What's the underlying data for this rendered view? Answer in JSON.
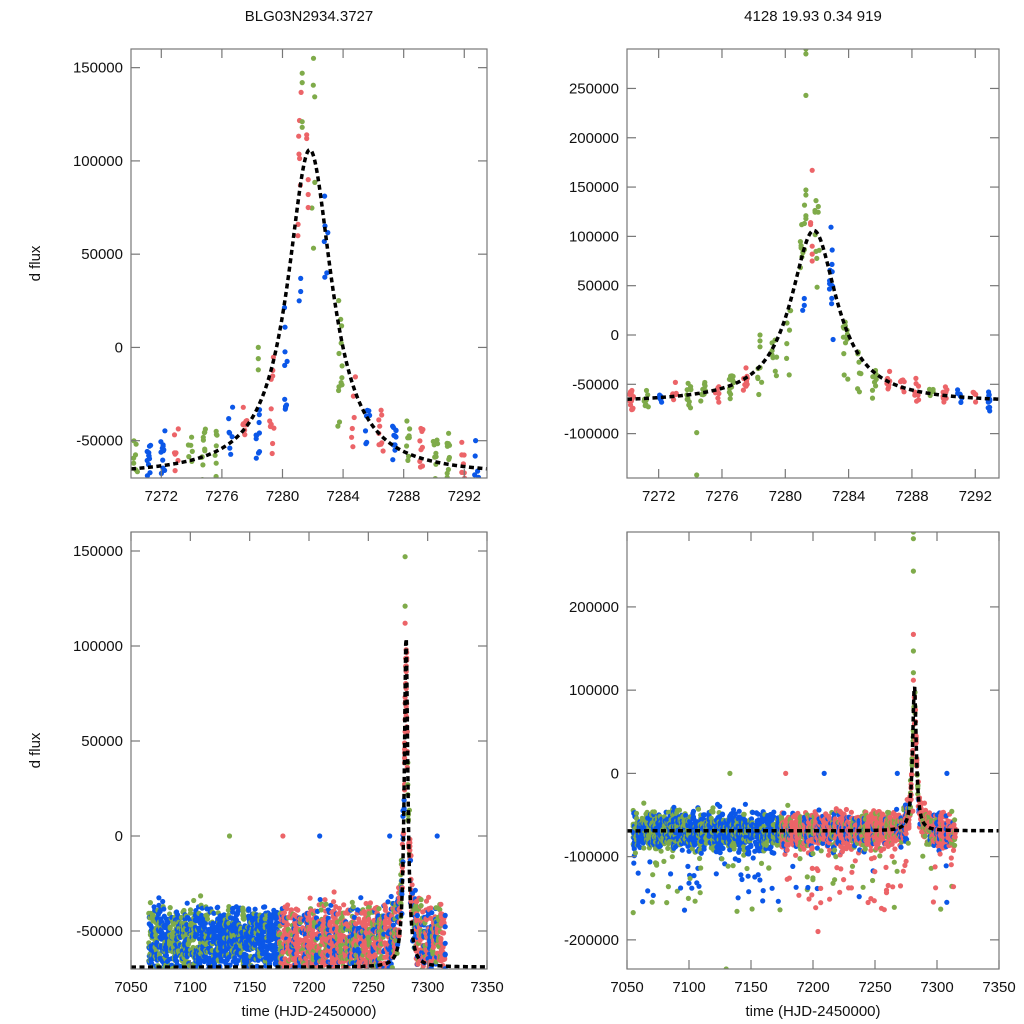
{
  "titles": {
    "left": "BLG03N2934.3727",
    "right": "4128  19.93  0.34  919"
  },
  "colors": {
    "series_green": "#7fab4a",
    "series_red": "#ec6468",
    "series_blue": "#0b57e8",
    "model": "#000000",
    "frame": "#777777"
  },
  "chart_data": [
    {
      "id": "top-left",
      "type": "scatter",
      "title": "BLG03N2934.3727",
      "xlabel": "",
      "ylabel": "d flux",
      "xlim": [
        7270,
        7293.5
      ],
      "ylim": [
        -70000,
        160000
      ],
      "xticks": [
        7272,
        7276,
        7280,
        7284,
        7288,
        7292
      ],
      "xtick_labels": [
        "7272",
        "7276",
        "7280",
        "7284",
        "7288",
        "7292"
      ],
      "yticks": [
        -50000,
        0,
        50000,
        100000,
        150000
      ],
      "ytick_labels": [
        "-50000",
        "0",
        "50000",
        "100000",
        "150000"
      ],
      "model": {
        "type": "lorentzian-like peak",
        "t0": 7281.8,
        "peak": 106000,
        "baseline": -69000,
        "width_days": 1.9
      },
      "series": [
        {
          "name": "green",
          "color": "#7fab4a"
        },
        {
          "name": "red",
          "color": "#ec6468"
        },
        {
          "name": "blue",
          "color": "#0b57e8"
        }
      ],
      "grid": false
    },
    {
      "id": "top-right",
      "type": "scatter",
      "title": "4128  19.93  0.34  919",
      "xlabel": "",
      "ylabel": "",
      "xlim": [
        7270,
        7293.5
      ],
      "ylim": [
        -145000,
        290000
      ],
      "xticks": [
        7272,
        7276,
        7280,
        7284,
        7288,
        7292
      ],
      "xtick_labels": [
        "7272",
        "7276",
        "7280",
        "7284",
        "7288",
        "7292"
      ],
      "yticks": [
        -100000,
        -50000,
        0,
        50000,
        100000,
        150000,
        200000,
        250000
      ],
      "ytick_labels": [
        "-100000",
        "-50000",
        "0",
        "50000",
        "100000",
        "150000",
        "200000",
        "250000"
      ],
      "model": {
        "type": "lorentzian-like peak",
        "t0": 7281.8,
        "peak": 106000,
        "baseline": -69000,
        "width_days": 1.9
      },
      "grid": false
    },
    {
      "id": "bottom-left",
      "type": "scatter",
      "title": "",
      "xlabel": "time (HJD-2450000)",
      "ylabel": "d flux",
      "xlim": [
        7050,
        7350
      ],
      "ylim": [
        -70000,
        160000
      ],
      "xticks": [
        7050,
        7100,
        7150,
        7200,
        7250,
        7300,
        7350
      ],
      "xtick_labels": [
        "7050",
        "7100",
        "7150",
        "7200",
        "7250",
        "7300",
        "7350"
      ],
      "yticks": [
        -50000,
        0,
        50000,
        100000,
        150000
      ],
      "ytick_labels": [
        "-50000",
        "0",
        "50000",
        "100000",
        "150000"
      ],
      "model": {
        "type": "lorentzian-like peak",
        "t0": 7281.8,
        "peak": 106000,
        "baseline": -69000,
        "width_days": 1.9
      },
      "data_span": [
        7065,
        7315
      ],
      "grid": false
    },
    {
      "id": "bottom-right",
      "type": "scatter",
      "title": "",
      "xlabel": "time (HJD-2450000)",
      "ylabel": "",
      "xlim": [
        7050,
        7350
      ],
      "ylim": [
        -235000,
        290000
      ],
      "xticks": [
        7050,
        7100,
        7150,
        7200,
        7250,
        7300,
        7350
      ],
      "xtick_labels": [
        "7050",
        "7100",
        "7150",
        "7200",
        "7250",
        "7300",
        "7350"
      ],
      "yticks": [
        -200000,
        -100000,
        0,
        100000,
        200000
      ],
      "ytick_labels": [
        "-200000",
        "-100000",
        "0",
        "100000",
        "200000"
      ],
      "model": {
        "type": "lorentzian-like peak",
        "t0": 7281.8,
        "peak": 106000,
        "baseline": -69000,
        "width_days": 1.9
      },
      "data_span": [
        7055,
        7315
      ],
      "grid": false
    }
  ]
}
